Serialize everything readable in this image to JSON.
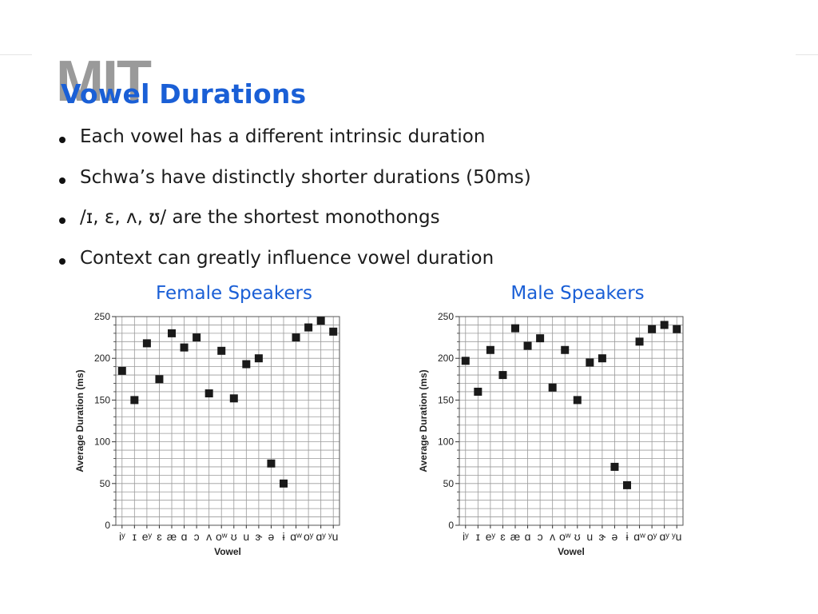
{
  "slide": {
    "logo": "MIT",
    "title": "Vowel Durations",
    "bullets": [
      "Each vowel has a different intrinsic duration",
      "Schwa’s have distinctly shorter durations (50ms)",
      "/ɪ, ɛ, ʌ, ʊ/ are the shortest monothongs",
      "Context can greatly influence vowel duration"
    ],
    "colors": {
      "title": "#1a5fd6",
      "marker": "#1a1a1a",
      "grid": "#9a9a9a"
    }
  },
  "chart_data": [
    {
      "type": "scatter",
      "title": "Female Speakers",
      "xlabel": "Vowel",
      "ylabel": "Average Duration (ms)",
      "categories": [
        "iʸ",
        "ɪ",
        "eʸ",
        "ɛ",
        "æ",
        "ɑ",
        "ɔ",
        "ʌ",
        "oʷ",
        "ʊ",
        "u",
        "ɝ",
        "ə",
        "ɨ",
        "ɑʷ",
        "oʸ",
        "ɑʸ",
        "ʸu"
      ],
      "values": [
        185,
        150,
        218,
        175,
        230,
        213,
        225,
        158,
        209,
        152,
        193,
        200,
        74,
        50,
        225,
        237,
        245,
        232
      ],
      "ylim": [
        0,
        250
      ],
      "yticks": [
        0,
        50,
        100,
        150,
        200,
        250
      ],
      "grid": true,
      "legend": "none"
    },
    {
      "type": "scatter",
      "title": "Male Speakers",
      "xlabel": "Vowel",
      "ylabel": "Average Duration (ms)",
      "categories": [
        "iʸ",
        "ɪ",
        "eʸ",
        "ɛ",
        "æ",
        "ɑ",
        "ɔ",
        "ʌ",
        "oʷ",
        "ʊ",
        "u",
        "ɝ",
        "ə",
        "ɨ",
        "ɑʷ",
        "oʸ",
        "ɑʸ",
        "ʸu"
      ],
      "values": [
        197,
        160,
        210,
        180,
        236,
        215,
        224,
        165,
        210,
        150,
        195,
        200,
        70,
        48,
        220,
        235,
        240,
        235
      ],
      "ylim": [
        0,
        250
      ],
      "yticks": [
        0,
        50,
        100,
        150,
        200,
        250
      ],
      "grid": true,
      "legend": "none"
    }
  ]
}
